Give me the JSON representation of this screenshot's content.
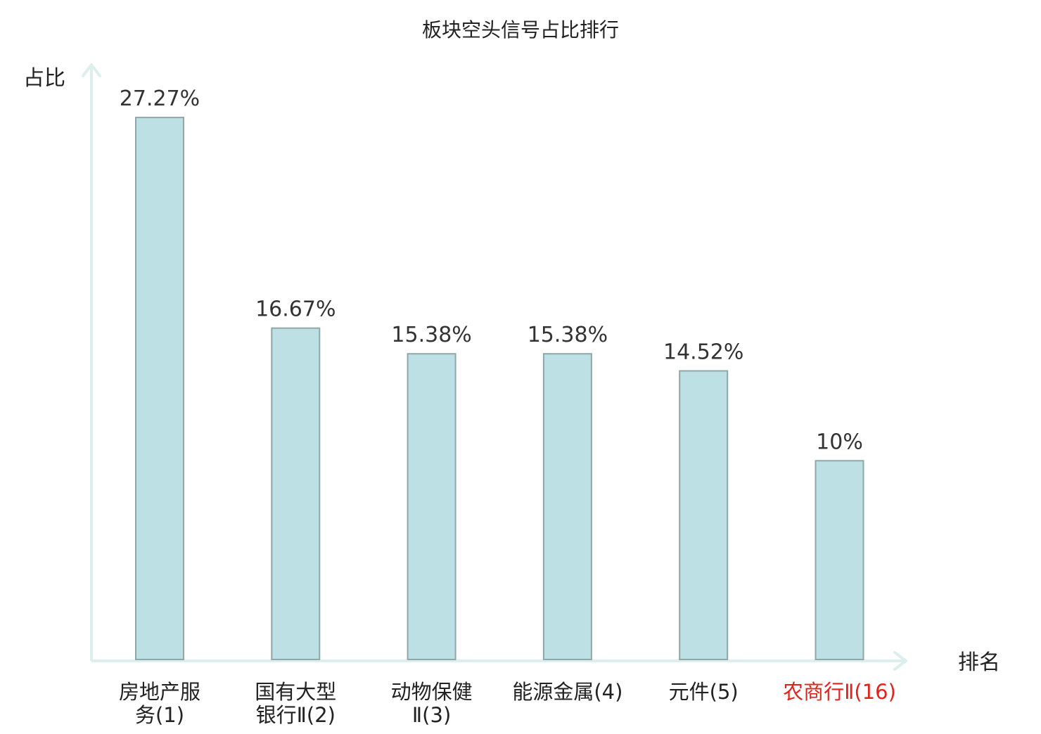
{
  "chart_data": {
    "type": "bar",
    "title": "板块空头信号占比排行",
    "ylabel": "占比",
    "xlabel": "排名",
    "ylim": [
      0,
      30
    ],
    "unit": "%",
    "categories": [
      {
        "lines": [
          "房地产服",
          "务(1)"
        ],
        "highlight": false
      },
      {
        "lines": [
          "国有大型",
          "银行Ⅱ(2)"
        ],
        "highlight": false
      },
      {
        "lines": [
          "动物保健",
          "Ⅱ(3)"
        ],
        "highlight": false
      },
      {
        "lines": [
          "能源金属(4)"
        ],
        "highlight": false
      },
      {
        "lines": [
          "元件(5)"
        ],
        "highlight": false
      },
      {
        "lines": [
          "农商行Ⅱ(16)"
        ],
        "highlight": true
      }
    ],
    "values": [
      27.27,
      16.67,
      15.38,
      15.38,
      14.52,
      10
    ],
    "value_labels": [
      "27.27%",
      "16.67%",
      "15.38%",
      "15.38%",
      "14.52%",
      "10%"
    ],
    "grid": false,
    "legend": "none"
  },
  "colors": {
    "bar_fill": "#bce0e3",
    "bar_stroke": "#8fa7a9",
    "axis": "#dcefed",
    "text": "#222222",
    "highlight_text": "#e0231c"
  }
}
